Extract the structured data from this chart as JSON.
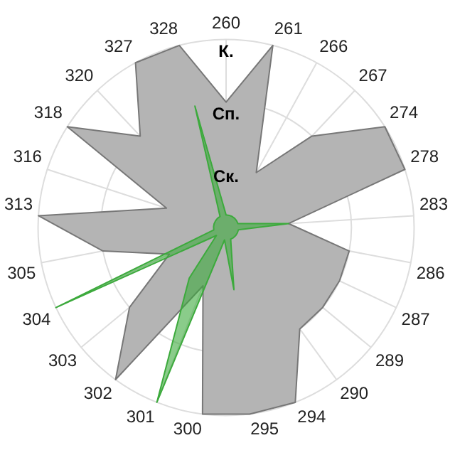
{
  "chart_data": {
    "type": "radar",
    "categories": [
      "260",
      "261",
      "266",
      "267",
      "274",
      "278",
      "283",
      "286",
      "287",
      "289",
      "290",
      "294",
      "295",
      "300",
      "301",
      "302",
      "303",
      "304",
      "305",
      "313",
      "316",
      "318",
      "320",
      "327",
      "328"
    ],
    "ylim": [
      0,
      3
    ],
    "yticks": [
      {
        "value": 1,
        "label": "Ск."
      },
      {
        "value": 2,
        "label": "Сп."
      },
      {
        "value": 3,
        "label": "К."
      }
    ],
    "grid": true,
    "legend": false,
    "marker": "none",
    "series": [
      {
        "color": "#b4b4b4",
        "values": [
          2,
          3,
          1,
          2,
          3,
          3,
          1,
          2,
          2,
          2,
          2,
          3,
          3,
          3,
          1,
          3,
          2,
          1,
          2,
          3,
          1,
          3,
          2,
          3,
          3
        ]
      },
      {
        "color": "#3caa3c",
        "values": [
          0.2,
          0.2,
          0.2,
          0.2,
          0.2,
          0.2,
          1,
          0.2,
          0.2,
          0.2,
          0.2,
          0.2,
          1,
          0.2,
          3,
          1,
          0.2,
          3,
          0.2,
          0.2,
          0.2,
          0.2,
          0.2,
          0.2,
          2
        ]
      }
    ]
  }
}
